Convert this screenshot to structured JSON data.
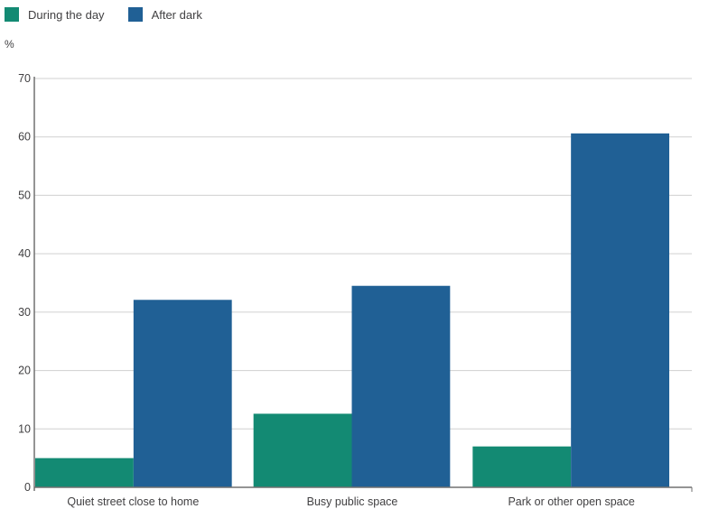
{
  "legend": {
    "items": [
      {
        "label": "During the day",
        "color": "#138a73"
      },
      {
        "label": "After dark",
        "color": "#206095"
      }
    ]
  },
  "y_axis_unit": "%",
  "chart_data": {
    "type": "bar",
    "categories": [
      "Quiet street close to home",
      "Busy public space",
      "Park or other open space"
    ],
    "series": [
      {
        "name": "During the day",
        "color": "#138a73",
        "values": [
          5.0,
          12.6,
          7.0
        ]
      },
      {
        "name": "After dark",
        "color": "#206095",
        "values": [
          32.1,
          34.5,
          60.6
        ]
      }
    ],
    "ylim": [
      0,
      70
    ],
    "yticks": [
      "0",
      "10",
      "20",
      "30",
      "40",
      "50",
      "60",
      "70"
    ],
    "grid": true,
    "legend_position": "top-left"
  }
}
